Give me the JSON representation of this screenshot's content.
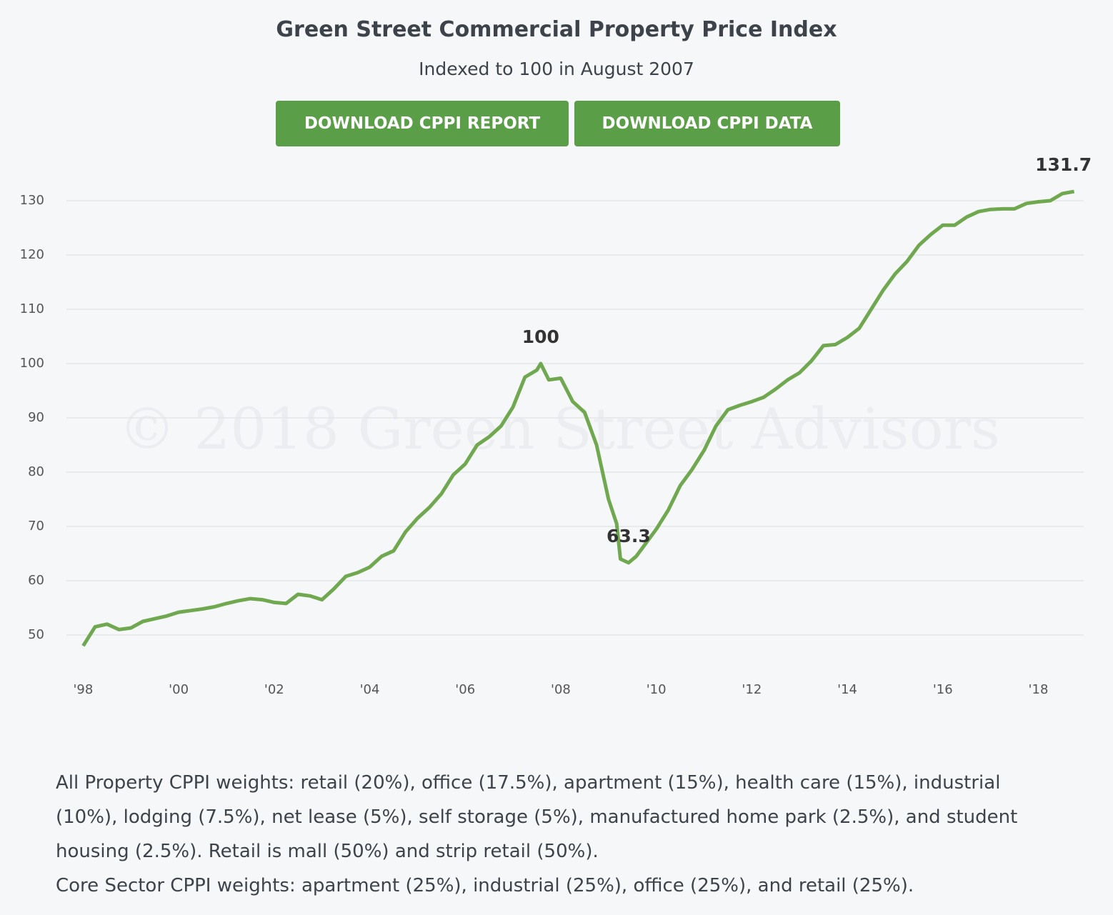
{
  "chart_data": {
    "type": "line",
    "title": "Green Street Commercial Property Price Index",
    "subtitle": "Indexed to 100 in August 2007",
    "watermark": "© 2018 Green Street Advisors",
    "x": [
      1998.0,
      1998.25,
      1998.5,
      1998.75,
      1999.0,
      1999.25,
      1999.5,
      1999.75,
      2000.0,
      2000.25,
      2000.5,
      2000.75,
      2001.0,
      2001.25,
      2001.5,
      2001.75,
      2002.0,
      2002.25,
      2002.5,
      2002.75,
      2003.0,
      2003.25,
      2003.5,
      2003.75,
      2004.0,
      2004.25,
      2004.5,
      2004.75,
      2005.0,
      2005.25,
      2005.5,
      2005.75,
      2006.0,
      2006.25,
      2006.5,
      2006.75,
      2007.0,
      2007.25,
      2007.5,
      2007.58,
      2007.75,
      2008.0,
      2008.25,
      2008.5,
      2008.75,
      2009.0,
      2009.17,
      2009.25,
      2009.42,
      2009.58,
      2009.75,
      2010.0,
      2010.25,
      2010.5,
      2010.75,
      2011.0,
      2011.25,
      2011.5,
      2011.75,
      2012.0,
      2012.25,
      2012.5,
      2012.75,
      2013.0,
      2013.25,
      2013.5,
      2013.75,
      2014.0,
      2014.25,
      2014.5,
      2014.75,
      2015.0,
      2015.25,
      2015.5,
      2015.75,
      2016.0,
      2016.25,
      2016.5,
      2016.75,
      2017.0,
      2017.25,
      2017.5,
      2017.75,
      2018.0,
      2018.25,
      2018.5,
      2018.75
    ],
    "values": [
      48,
      51.5,
      52,
      51,
      51.3,
      52.5,
      53,
      53.5,
      54.2,
      54.5,
      54.8,
      55.2,
      55.8,
      56.3,
      56.7,
      56.5,
      56,
      55.8,
      57.5,
      57.2,
      56.5,
      58.5,
      60.8,
      61.5,
      62.5,
      64.5,
      65.5,
      69,
      71.5,
      73.5,
      76,
      79.5,
      81.5,
      85,
      86.5,
      88.5,
      92,
      97.5,
      98.8,
      100,
      97,
      97.3,
      93,
      91,
      85,
      75,
      70.5,
      64,
      63.3,
      64.5,
      66.5,
      69.5,
      73,
      77.5,
      80.5,
      84,
      88.5,
      91.5,
      92.3,
      93,
      93.8,
      95.3,
      97,
      98.3,
      100.5,
      103.3,
      103.5,
      104.8,
      106.5,
      110,
      113.5,
      116.5,
      118.8,
      121.8,
      123.8,
      125.5,
      125.5,
      127,
      128,
      128.4,
      128.5,
      128.5,
      129.5,
      129.8,
      130,
      131.3,
      131.7
    ],
    "color": "#6fa84f",
    "annotations": [
      {
        "x": 2007.58,
        "y": 100,
        "text": "100"
      },
      {
        "x": 2009.42,
        "y": 63.3,
        "text": "63.3"
      },
      {
        "x": 2018.75,
        "y": 131.7,
        "text": "131.7"
      }
    ],
    "xlim": [
      1997.65,
      2018.95
    ],
    "xticks": [
      {
        "value": 1998,
        "label": "'98"
      },
      {
        "value": 2000,
        "label": "'00"
      },
      {
        "value": 2002,
        "label": "'02"
      },
      {
        "value": 2004,
        "label": "'04"
      },
      {
        "value": 2006,
        "label": "'06"
      },
      {
        "value": 2008,
        "label": "'08"
      },
      {
        "value": 2010,
        "label": "'10"
      },
      {
        "value": 2012,
        "label": "'12"
      },
      {
        "value": 2014,
        "label": "'14"
      },
      {
        "value": 2016,
        "label": "'16"
      },
      {
        "value": 2018,
        "label": "'18"
      }
    ],
    "ylim": [
      45,
      135
    ],
    "yticks": [
      50,
      60,
      70,
      80,
      90,
      100,
      110,
      120,
      130
    ],
    "grid": true
  },
  "buttons": [
    "DOWNLOAD CPPI REPORT",
    "DOWNLOAD CPPI DATA"
  ],
  "notes": [
    "All Property CPPI weights: retail (20%), office (17.5%), apartment (15%), health care (15%), industrial (10%), lodging (7.5%), net lease (5%), self storage (5%), manufactured home park (2.5%), and student housing (2.5%). Retail is mall (50%) and strip retail (50%).",
    "Core Sector CPPI weights: apartment (25%), industrial (25%), office (25%), and retail (25%)."
  ]
}
